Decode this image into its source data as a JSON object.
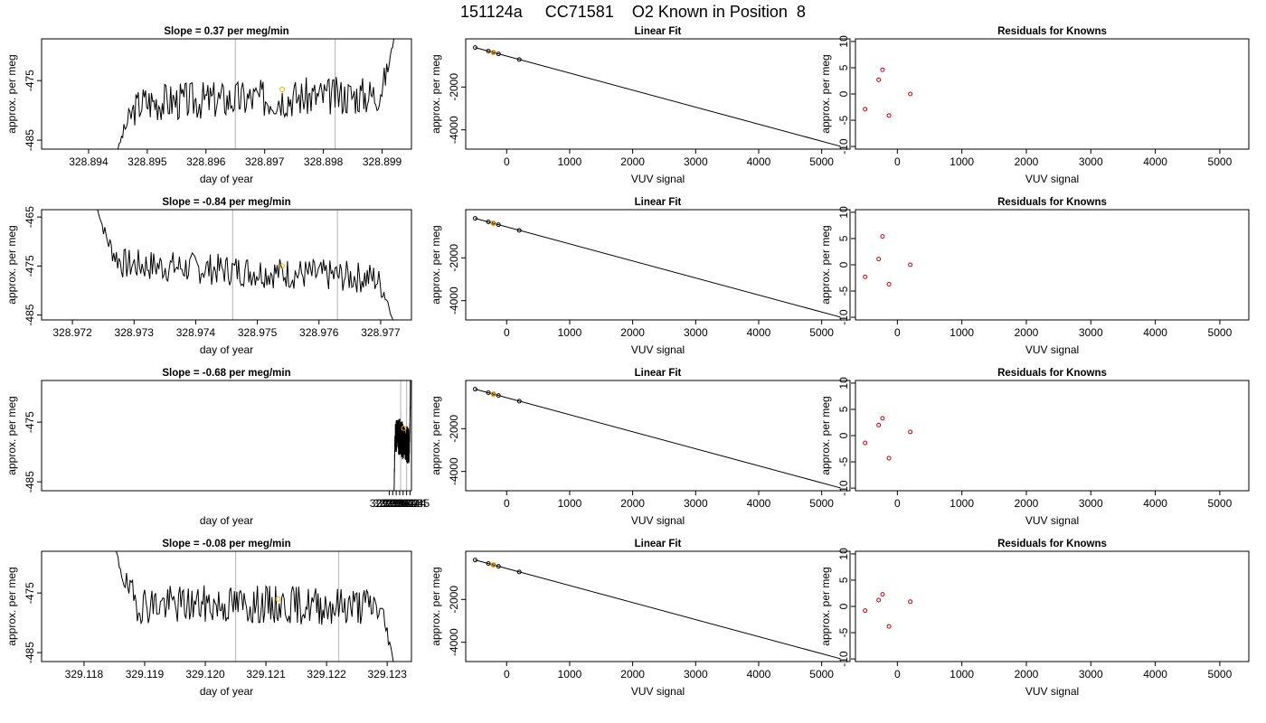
{
  "main_title": "151124a     CC71581    O2 Known in Position  8",
  "colors": {
    "line": "#000000",
    "vline": "#bfbfbf",
    "highlight": "#ffa500",
    "resid": "#cc0000"
  },
  "chart_data": [
    {
      "type": "line",
      "title": "Slope =  0.37  per meg/min",
      "xlabel": "day of year",
      "ylabel": "approx. per meg",
      "xlim": [
        328.8932,
        328.8995
      ],
      "ylim": [
        -486.5,
        -468
      ],
      "xticks": [
        "328.894",
        "328.895",
        "328.896",
        "328.897",
        "328.898",
        "328.899"
      ],
      "xtick_values": [
        328.894,
        328.895,
        328.896,
        328.897,
        328.898,
        328.899
      ],
      "yticks": [
        "-475",
        "-485"
      ],
      "ytick_values": [
        -475,
        -485
      ],
      "vlines": [
        328.8965,
        328.8982
      ],
      "highlight_points": [
        [
          328.8973,
          -476.5
        ]
      ],
      "series_x0": 328.8945,
      "series_x1": 328.8992,
      "series_start": -486.5,
      "series_mid": -478,
      "series_end": -468,
      "drift": 0.37,
      "seed": 3
    },
    {
      "type": "scatter",
      "title": "Linear Fit",
      "xlabel": "VUV signal",
      "ylabel": "approx. per meg",
      "xlim": [
        -650,
        5450
      ],
      "ylim": [
        -4900,
        250
      ],
      "xticks": [
        "0",
        "1000",
        "2000",
        "3000",
        "4000",
        "5000"
      ],
      "xtick_values": [
        0,
        1000,
        2000,
        3000,
        4000,
        5000
      ],
      "yticks": [
        "-2000",
        "-4000"
      ],
      "ytick_values": [
        -2000,
        -4000
      ],
      "fit_line": [
        [
          -500,
          -155
        ],
        [
          5300,
          -4770
        ]
      ],
      "points": [
        [
          -500,
          -155
        ],
        [
          -290,
          -320
        ],
        [
          -210,
          -385
        ],
        [
          -130,
          -450
        ],
        [
          200,
          -715
        ]
      ],
      "highlight_points": [
        [
          -210,
          -385
        ]
      ]
    },
    {
      "type": "scatter",
      "title": "Residuals for Knowns",
      "xlabel": "VUV signal",
      "ylabel": "approx. per meg",
      "xlim": [
        -650,
        5450
      ],
      "ylim": [
        -10.5,
        10.5
      ],
      "xticks": [
        "0",
        "1000",
        "2000",
        "3000",
        "4000",
        "5000"
      ],
      "xtick_values": [
        0,
        1000,
        2000,
        3000,
        4000,
        5000
      ],
      "yticks": [
        "-10",
        "-5",
        "0",
        "5",
        "10"
      ],
      "ytick_values": [
        -10,
        -5,
        0,
        5,
        10
      ],
      "points": [
        [
          -500,
          -2.9
        ],
        [
          -290,
          2.7
        ],
        [
          -230,
          4.6
        ],
        [
          -130,
          -4.1
        ],
        [
          200,
          0.0
        ]
      ]
    },
    {
      "type": "line",
      "title": "Slope =  -0.84  per meg/min",
      "xlabel": "day of year",
      "ylabel": "approx. per meg",
      "xlim": [
        328.9715,
        328.9775
      ],
      "ylim": [
        -486,
        -463.5
      ],
      "xticks": [
        "328.972",
        "328.973",
        "328.974",
        "328.975",
        "328.976",
        "328.977"
      ],
      "xtick_values": [
        328.972,
        328.973,
        328.974,
        328.975,
        328.976,
        328.977
      ],
      "yticks": [
        "-465",
        "-475",
        "-485"
      ],
      "ytick_values": [
        -465,
        -475,
        -485
      ],
      "vlines": [
        328.9746,
        328.9763
      ],
      "highlight_points": [
        [
          328.9754,
          -475
        ]
      ],
      "series_x0": 328.9724,
      "series_x1": 328.9772,
      "series_start": -463,
      "series_mid": -476,
      "series_end": -486,
      "drift": -0.84,
      "seed": 7
    },
    {
      "type": "scatter",
      "title": "Linear Fit",
      "xlabel": "VUV signal",
      "ylabel": "approx. per meg",
      "xlim": [
        -650,
        5450
      ],
      "ylim": [
        -4900,
        250
      ],
      "xticks": [
        "0",
        "1000",
        "2000",
        "3000",
        "4000",
        "5000"
      ],
      "xtick_values": [
        0,
        1000,
        2000,
        3000,
        4000,
        5000
      ],
      "yticks": [
        "-2000",
        "-4000"
      ],
      "ytick_values": [
        -2000,
        -4000
      ],
      "fit_line": [
        [
          -500,
          -155
        ],
        [
          5300,
          -4770
        ]
      ],
      "points": [
        [
          -500,
          -155
        ],
        [
          -290,
          -320
        ],
        [
          -210,
          -385
        ],
        [
          -130,
          -450
        ],
        [
          200,
          -715
        ]
      ],
      "highlight_points": [
        [
          -210,
          -385
        ]
      ]
    },
    {
      "type": "scatter",
      "title": "Residuals for Knowns",
      "xlabel": "VUV signal",
      "ylabel": "approx. per meg",
      "xlim": [
        -650,
        5450
      ],
      "ylim": [
        -10.5,
        10.5
      ],
      "xticks": [
        "0",
        "1000",
        "2000",
        "3000",
        "4000",
        "5000"
      ],
      "xtick_values": [
        0,
        1000,
        2000,
        3000,
        4000,
        5000
      ],
      "yticks": [
        "-10",
        "-5",
        "0",
        "5",
        "10"
      ],
      "ytick_values": [
        -10,
        -5,
        0,
        5,
        10
      ],
      "points": [
        [
          -500,
          -2.3
        ],
        [
          -290,
          1.1
        ],
        [
          -230,
          5.4
        ],
        [
          -130,
          -3.7
        ],
        [
          200,
          0.0
        ]
      ]
    },
    {
      "type": "line",
      "title": "Slope =  -0.68  per meg/min",
      "xlabel": "day of year",
      "ylabel": "approx. per meg",
      "xlim": [
        328.9389,
        329.0454
      ],
      "ylim": [
        -486.5,
        -468
      ],
      "xticks": [
        "329.039",
        "329.040",
        "329.041",
        "329.042",
        "329.043",
        "329.044",
        "329.045"
      ],
      "xtick_values": [
        329.039,
        329.04,
        329.041,
        329.042,
        329.043,
        329.044,
        329.045
      ],
      "yticks": [
        "-475",
        "-485"
      ],
      "ytick_values": [
        -475,
        -485
      ],
      "vlines": [
        329.0423,
        329.044
      ],
      "highlight_points": [
        [
          329.0432,
          -476
        ]
      ],
      "series_x0": 329.0404,
      "series_x1": 329.0451,
      "series_start": -486.5,
      "series_mid": -478,
      "series_end": -468,
      "drift": -0.68,
      "seed": 11
    },
    {
      "type": "scatter",
      "title": "Linear Fit",
      "xlabel": "VUV signal",
      "ylabel": "approx. per meg",
      "xlim": [
        -650,
        5450
      ],
      "ylim": [
        -4900,
        250
      ],
      "xticks": [
        "0",
        "1000",
        "2000",
        "3000",
        "4000",
        "5000"
      ],
      "xtick_values": [
        0,
        1000,
        2000,
        3000,
        4000,
        5000
      ],
      "yticks": [
        "-2000",
        "-4000"
      ],
      "ytick_values": [
        -2000,
        -4000
      ],
      "fit_line": [
        [
          -500,
          -155
        ],
        [
          5300,
          -4770
        ]
      ],
      "points": [
        [
          -500,
          -155
        ],
        [
          -290,
          -320
        ],
        [
          -210,
          -385
        ],
        [
          -130,
          -450
        ],
        [
          200,
          -715
        ]
      ],
      "highlight_points": [
        [
          -210,
          -385
        ]
      ]
    },
    {
      "type": "scatter",
      "title": "Residuals for Knowns",
      "xlabel": "VUV signal",
      "ylabel": "approx. per meg",
      "xlim": [
        -650,
        5450
      ],
      "ylim": [
        -10.5,
        10.5
      ],
      "xticks": [
        "0",
        "1000",
        "2000",
        "3000",
        "4000",
        "5000"
      ],
      "xtick_values": [
        0,
        1000,
        2000,
        3000,
        4000,
        5000
      ],
      "yticks": [
        "-10",
        "-5",
        "0",
        "5",
        "10"
      ],
      "ytick_values": [
        -10,
        -5,
        0,
        5,
        10
      ],
      "points": [
        [
          -500,
          -1.4
        ],
        [
          -290,
          2.0
        ],
        [
          -230,
          3.3
        ],
        [
          -130,
          -4.3
        ],
        [
          200,
          0.7
        ]
      ]
    },
    {
      "type": "line",
      "title": "Slope =  -0.08  per meg/min",
      "xlabel": "day of year",
      "ylabel": "approx. per meg",
      "xlim": [
        329.1173,
        329.1234
      ],
      "ylim": [
        -486.5,
        -468
      ],
      "xticks": [
        "329.118",
        "329.119",
        "329.120",
        "329.121",
        "329.122",
        "329.123"
      ],
      "xtick_values": [
        329.118,
        329.119,
        329.12,
        329.121,
        329.122,
        329.123
      ],
      "yticks": [
        "-475",
        "-485"
      ],
      "ytick_values": [
        -475,
        -485
      ],
      "vlines": [
        329.1205,
        329.1222
      ],
      "highlight_points": [
        [
          329.1212,
          -476
        ]
      ],
      "series_x0": 329.1185,
      "series_x1": 329.1231,
      "series_start": -467,
      "series_mid": -477,
      "series_end": -486.5,
      "drift": -0.08,
      "seed": 19
    },
    {
      "type": "scatter",
      "title": "Linear Fit",
      "xlabel": "VUV signal",
      "ylabel": "approx. per meg",
      "xlim": [
        -650,
        5450
      ],
      "ylim": [
        -4900,
        250
      ],
      "xticks": [
        "0",
        "1000",
        "2000",
        "3000",
        "4000",
        "5000"
      ],
      "xtick_values": [
        0,
        1000,
        2000,
        3000,
        4000,
        5000
      ],
      "yticks": [
        "-2000",
        "-4000"
      ],
      "ytick_values": [
        -2000,
        -4000
      ],
      "fit_line": [
        [
          -500,
          -155
        ],
        [
          5300,
          -4770
        ]
      ],
      "points": [
        [
          -500,
          -155
        ],
        [
          -290,
          -320
        ],
        [
          -210,
          -385
        ],
        [
          -130,
          -450
        ],
        [
          200,
          -715
        ]
      ],
      "highlight_points": [
        [
          -210,
          -385
        ]
      ]
    },
    {
      "type": "scatter",
      "title": "Residuals for Knowns",
      "xlabel": "VUV signal",
      "ylabel": "approx. per meg",
      "xlim": [
        -650,
        5450
      ],
      "ylim": [
        -10.5,
        10.5
      ],
      "xticks": [
        "0",
        "1000",
        "2000",
        "3000",
        "4000",
        "5000"
      ],
      "xtick_values": [
        0,
        1000,
        2000,
        3000,
        4000,
        5000
      ],
      "yticks": [
        "-10",
        "-5",
        "0",
        "5",
        "10"
      ],
      "ytick_values": [
        -10,
        -5,
        0,
        5,
        10
      ],
      "points": [
        [
          -500,
          -0.8
        ],
        [
          -290,
          1.2
        ],
        [
          -230,
          2.3
        ],
        [
          -130,
          -3.8
        ],
        [
          200,
          0.9
        ]
      ]
    }
  ]
}
